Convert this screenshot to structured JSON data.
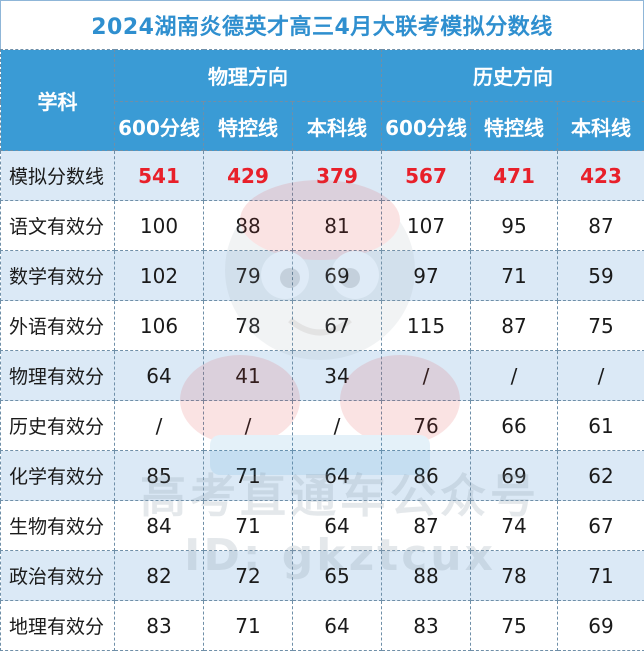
{
  "title": "2024湖南炎德英才高三4月大联考模拟分数线",
  "header": {
    "subject": "学科",
    "physics_group": "物理方向",
    "history_group": "历史方向",
    "cols": [
      "600分线",
      "特控线",
      "本科线",
      "600分线",
      "特控线",
      "本科线"
    ]
  },
  "rows": [
    {
      "label": "模拟分数线",
      "values": [
        "541",
        "429",
        "379",
        "567",
        "471",
        "423"
      ]
    },
    {
      "label": "语文有效分",
      "values": [
        "100",
        "88",
        "81",
        "107",
        "95",
        "87"
      ]
    },
    {
      "label": "数学有效分",
      "values": [
        "102",
        "79",
        "69",
        "97",
        "71",
        "59"
      ]
    },
    {
      "label": "外语有效分",
      "values": [
        "106",
        "78",
        "67",
        "115",
        "87",
        "75"
      ]
    },
    {
      "label": "物理有效分",
      "values": [
        "64",
        "41",
        "34",
        "/",
        "/",
        "/"
      ]
    },
    {
      "label": "历史有效分",
      "values": [
        "/",
        "/",
        "/",
        "76",
        "66",
        "61"
      ]
    },
    {
      "label": "化学有效分",
      "values": [
        "85",
        "71",
        "64",
        "86",
        "69",
        "62"
      ]
    },
    {
      "label": "生物有效分",
      "values": [
        "84",
        "71",
        "64",
        "87",
        "74",
        "67"
      ]
    },
    {
      "label": "政治有效分",
      "values": [
        "82",
        "72",
        "65",
        "88",
        "78",
        "71"
      ]
    },
    {
      "label": "地理有效分",
      "values": [
        "83",
        "71",
        "64",
        "83",
        "75",
        "69"
      ]
    }
  ],
  "watermark": {
    "line1": "高考直通车公众号",
    "line2": "ID: gkztcux"
  },
  "colors": {
    "header_bg": "#3a9bd5",
    "title_text": "#2f8fcf",
    "alt_row_bg": "#dbe9f6",
    "highlight_red": "#e8202a"
  }
}
